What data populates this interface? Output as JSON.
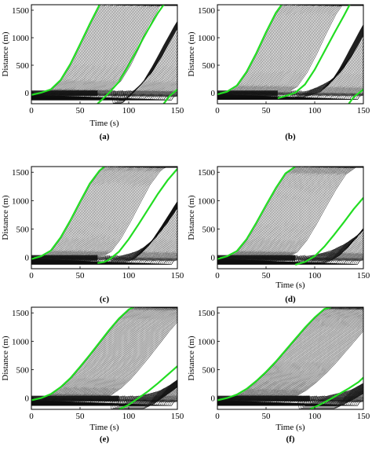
{
  "chart_data": [
    {
      "type": "line",
      "panel_label": "(a)",
      "xlabel": "Time (s)",
      "ylabel": "Distance (m)",
      "xlim": [
        0,
        150
      ],
      "ylim": [
        -200,
        1600
      ],
      "xticks": [
        0,
        50,
        100,
        150
      ],
      "yticks": [
        0,
        500,
        1000,
        1500
      ],
      "series": [
        {
          "x": [
            0,
            10,
            20,
            30,
            40,
            50,
            60,
            70
          ],
          "y": [
            -40,
            0,
            60,
            230,
            520,
            880,
            1250,
            1600
          ]
        },
        {
          "x": [
            68,
            80,
            90,
            100,
            110,
            120,
            130,
            136
          ],
          "y": [
            -200,
            0,
            200,
            500,
            830,
            1150,
            1450,
            1600
          ]
        },
        {
          "x": [
            136,
            142,
            150
          ],
          "y": [
            -200,
            -60,
            60
          ]
        }
      ]
    },
    {
      "type": "line",
      "panel_label": "(b)",
      "xlabel": "",
      "ylabel": "Distance (m)",
      "xlim": [
        0,
        150
      ],
      "ylim": [
        -200,
        1600
      ],
      "xticks": [
        0,
        50,
        100,
        150
      ],
      "yticks": [
        0,
        500,
        1000,
        1500
      ],
      "series": [
        {
          "x": [
            0,
            10,
            20,
            30,
            40,
            50,
            60,
            66
          ],
          "y": [
            -30,
            20,
            130,
            380,
            720,
            1100,
            1450,
            1600
          ]
        },
        {
          "x": [
            62,
            70,
            80,
            90,
            100,
            110,
            120,
            130,
            136
          ],
          "y": [
            -100,
            -60,
            0,
            150,
            420,
            750,
            1080,
            1400,
            1600
          ]
        },
        {
          "x": [
            135,
            140,
            150
          ],
          "y": [
            -200,
            -80,
            60
          ]
        }
      ]
    },
    {
      "type": "line",
      "panel_label": "(c)",
      "xlabel": "",
      "ylabel": "Distance (m)",
      "xlim": [
        0,
        150
      ],
      "ylim": [
        -200,
        1600
      ],
      "xticks": [
        0,
        50,
        100,
        150
      ],
      "yticks": [
        0,
        500,
        1000,
        1500
      ],
      "series": [
        {
          "x": [
            0,
            10,
            20,
            30,
            40,
            50,
            60,
            70,
            75
          ],
          "y": [
            -30,
            20,
            120,
            350,
            650,
            980,
            1300,
            1530,
            1600
          ]
        },
        {
          "x": [
            68,
            75,
            80,
            90,
            100,
            110,
            120,
            130,
            140,
            150
          ],
          "y": [
            -100,
            -80,
            -40,
            100,
            320,
            580,
            850,
            1120,
            1360,
            1560
          ]
        }
      ]
    },
    {
      "type": "line",
      "panel_label": "(d)",
      "xlabel": "Time (s)",
      "ylabel": "Distance (m)",
      "xlim": [
        0,
        150
      ],
      "ylim": [
        -200,
        1600
      ],
      "xticks": [
        0,
        50,
        100,
        150
      ],
      "yticks": [
        0,
        500,
        1000,
        1500
      ],
      "series": [
        {
          "x": [
            0,
            10,
            20,
            30,
            40,
            50,
            60,
            70,
            80
          ],
          "y": [
            -30,
            20,
            110,
            320,
            610,
            920,
            1220,
            1480,
            1600
          ]
        },
        {
          "x": [
            80,
            90,
            100,
            110,
            120,
            130,
            140,
            150
          ],
          "y": [
            -130,
            -80,
            20,
            190,
            400,
            620,
            850,
            1050
          ]
        }
      ]
    },
    {
      "type": "line",
      "panel_label": "(e)",
      "xlabel": "Time (s)",
      "ylabel": "Distance (m)",
      "xlim": [
        0,
        150
      ],
      "ylim": [
        -200,
        1600
      ],
      "xticks": [
        0,
        50,
        100,
        150
      ],
      "yticks": [
        0,
        500,
        1000,
        1500
      ],
      "series": [
        {
          "x": [
            0,
            10,
            20,
            30,
            40,
            50,
            60,
            70,
            80,
            90,
            100,
            105
          ],
          "y": [
            -40,
            0,
            70,
            190,
            350,
            550,
            760,
            980,
            1200,
            1400,
            1560,
            1600
          ]
        },
        {
          "x": [
            90,
            100,
            110,
            120,
            130,
            140,
            150
          ],
          "y": [
            -200,
            -120,
            0,
            120,
            260,
            410,
            560
          ]
        }
      ]
    },
    {
      "type": "line",
      "panel_label": "(f)",
      "xlabel": "Time (s)",
      "ylabel": "Distance (m)",
      "xlim": [
        0,
        150
      ],
      "ylim": [
        -200,
        1600
      ],
      "xticks": [
        0,
        50,
        100,
        150
      ],
      "yticks": [
        0,
        500,
        1000,
        1500
      ],
      "series": [
        {
          "x": [
            0,
            10,
            20,
            30,
            40,
            50,
            60,
            70,
            80,
            90,
            100,
            110,
            117
          ],
          "y": [
            -40,
            0,
            60,
            160,
            300,
            460,
            640,
            840,
            1040,
            1240,
            1420,
            1570,
            1600
          ]
        },
        {
          "x": [
            95,
            105,
            115,
            125,
            135,
            145,
            150
          ],
          "y": [
            -200,
            -120,
            -30,
            70,
            170,
            280,
            360
          ]
        }
      ]
    }
  ],
  "style": {
    "highlight_color": "#22dd22",
    "trajectory_color": "#111111",
    "axis_color": "#000000"
  }
}
